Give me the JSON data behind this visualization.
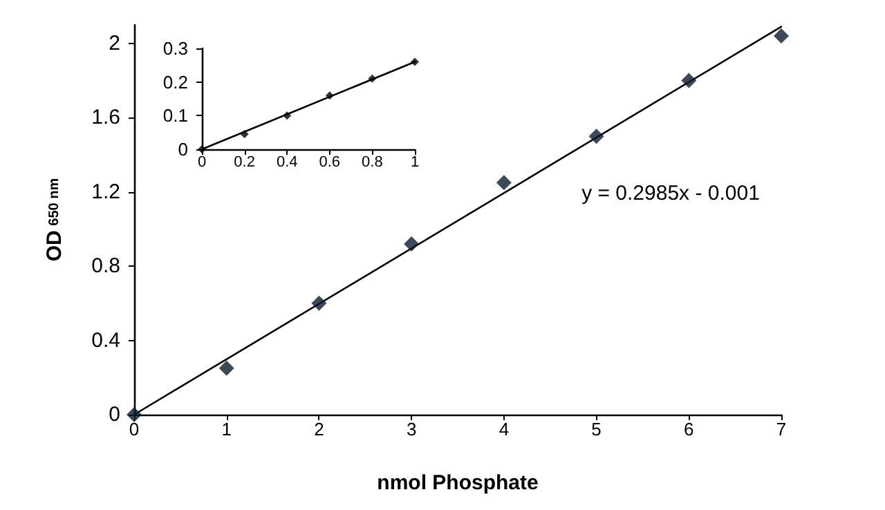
{
  "chart_data": [
    {
      "type": "scatter",
      "xlabel": "nmol Phosphate",
      "ylabel": "OD$_{650 nm}$",
      "xlim": [
        0,
        7
      ],
      "xticks": [
        0,
        1,
        2,
        3,
        4,
        5,
        6,
        7
      ],
      "ylim": [
        0,
        2.1
      ],
      "yticks": [
        0,
        0.4,
        0.8,
        1.2,
        1.6,
        2
      ],
      "grid": false,
      "marker": "diamond",
      "series": [
        {
          "color": "#0d1b2e",
          "x": [
            0,
            1,
            2,
            3,
            4,
            5,
            6,
            7
          ],
          "values": [
            0,
            0.25,
            0.6,
            0.92,
            1.25,
            1.5,
            1.8,
            2.04
          ]
        },
        {
          "type": "line",
          "color": "#000000",
          "line_style": "solid",
          "marker": "none",
          "x": [
            0,
            7
          ],
          "values": [
            0,
            2.09
          ]
        }
      ],
      "annotations": [
        "y = 0.2985x - 0.001"
      ]
    },
    {
      "type": "scatter",
      "xlim": [
        0,
        1
      ],
      "xticks": [
        0,
        0.2,
        0.4,
        0.6,
        0.8,
        1
      ],
      "ylim": [
        0,
        0.3
      ],
      "yticks": [
        0,
        0.1,
        0.2,
        0.3
      ],
      "grid": false,
      "marker": "diamond",
      "series": [
        {
          "color": "#000000",
          "x": [
            0,
            0.2,
            0.4,
            0.6,
            0.8,
            1
          ],
          "values": [
            0,
            0.045,
            0.1,
            0.16,
            0.21,
            0.26
          ]
        },
        {
          "type": "line",
          "color": "#000000",
          "line_style": "solid",
          "marker": "none",
          "x": [
            0,
            1
          ],
          "values": [
            0,
            0.26
          ]
        }
      ]
    }
  ]
}
